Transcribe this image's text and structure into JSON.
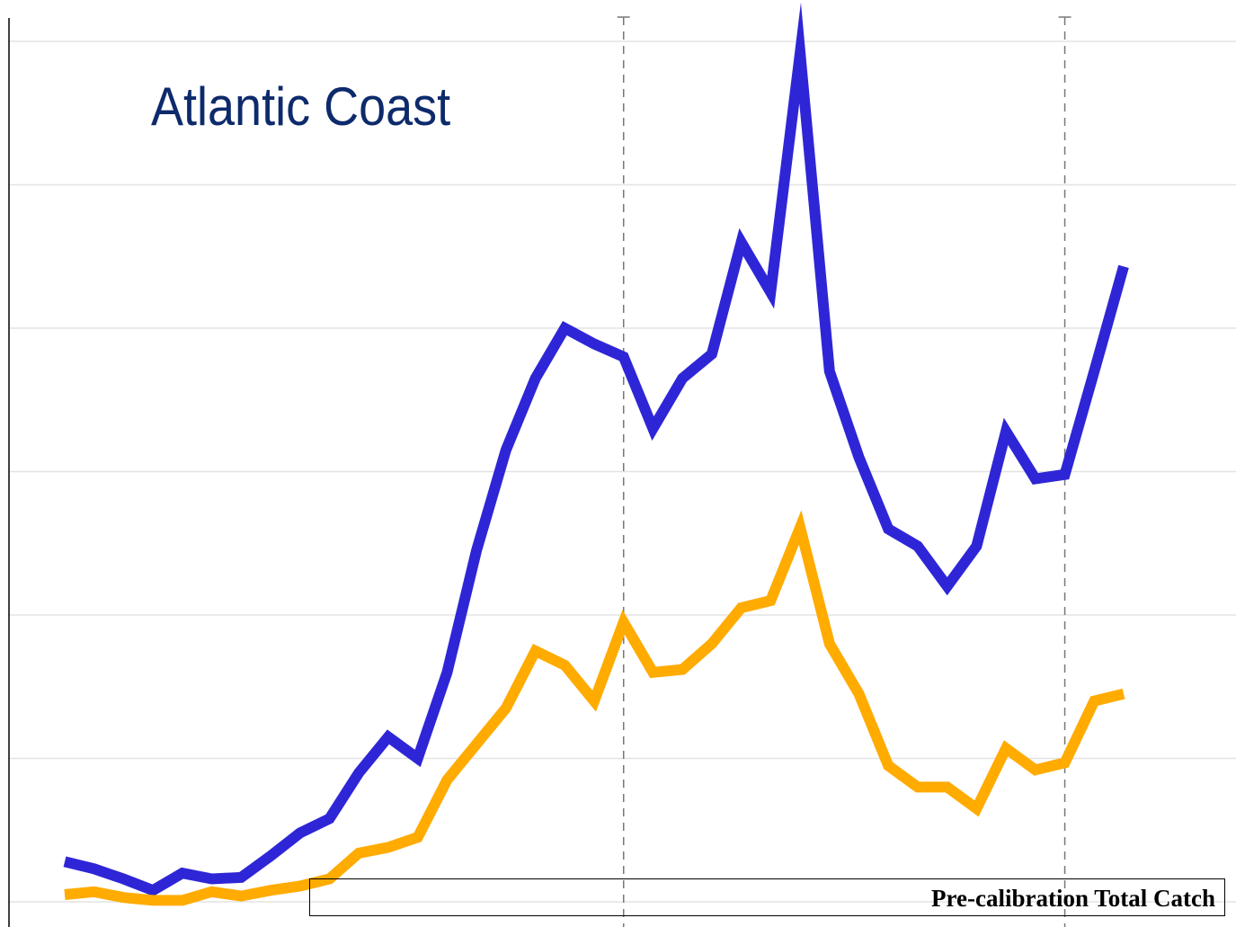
{
  "chart_data": {
    "type": "line",
    "title": "Atlantic Coast",
    "xlabel": "",
    "ylabel": "",
    "xlim": [
      0,
      36
    ],
    "ylim": [
      0,
      6.2
    ],
    "grid": true,
    "x": [
      0,
      1,
      2,
      3,
      4,
      5,
      6,
      7,
      8,
      9,
      10,
      11,
      12,
      13,
      14,
      15,
      16,
      17,
      18,
      19,
      20,
      21,
      22,
      23,
      24,
      25,
      26,
      27,
      28,
      29,
      30,
      31,
      32,
      33,
      34,
      35,
      36
    ],
    "series": [
      {
        "color": "#2e26d6",
        "values": [
          0.28,
          0.23,
          0.16,
          0.08,
          0.2,
          0.16,
          0.17,
          0.32,
          0.48,
          0.58,
          0.9,
          1.15,
          1.0,
          1.6,
          2.45,
          3.15,
          3.65,
          4.0,
          3.89,
          3.8,
          3.3,
          3.65,
          3.82,
          4.6,
          4.25,
          5.92,
          3.7,
          3.1,
          2.6,
          2.48,
          2.2,
          2.48,
          3.28,
          2.95,
          2.98,
          3.7,
          4.43
        ]
      },
      {
        "color": "#ffab00",
        "values": [
          0.05,
          0.07,
          0.03,
          0.01,
          0.01,
          0.07,
          0.04,
          0.08,
          0.11,
          0.16,
          0.34,
          0.38,
          0.45,
          0.85,
          1.1,
          1.35,
          1.75,
          1.65,
          1.4,
          1.95,
          1.6,
          1.62,
          1.8,
          2.05,
          2.1,
          2.61,
          1.8,
          1.45,
          0.95,
          0.8,
          0.8,
          0.65,
          1.07,
          0.92,
          0.97,
          1.4,
          1.45
        ]
      }
    ],
    "vlines_x": [
      19,
      34
    ],
    "legend": [
      "Pre-calibration Total Catch"
    ],
    "legend_placement": "bottom-right"
  }
}
